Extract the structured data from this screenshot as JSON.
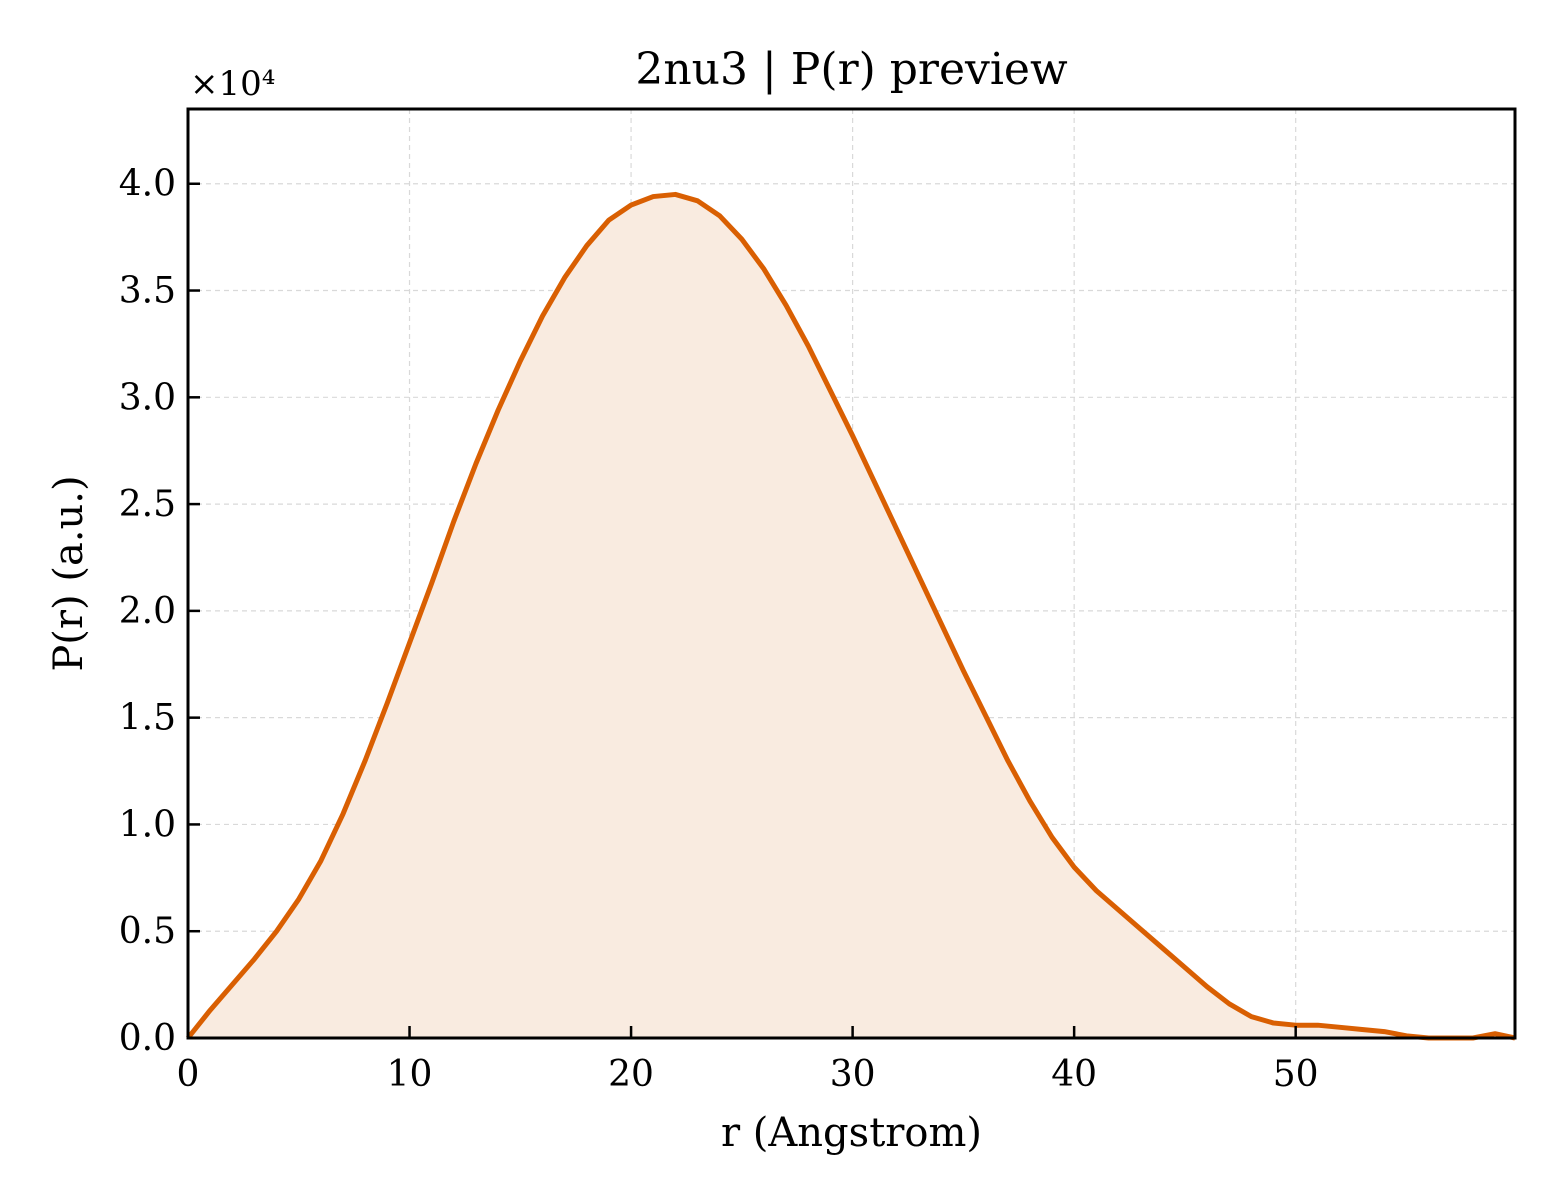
{
  "chart_data": {
    "type": "area",
    "title": "2nu3 | P(r) preview",
    "xlabel": "r (Angstrom)",
    "ylabel": "P(r) (a.u.)",
    "y_offset_label": "×10⁴",
    "xlim": [
      0,
      59.9
    ],
    "ylim": [
      0,
      4.35
    ],
    "xticks": [
      0,
      10,
      20,
      30,
      40,
      50
    ],
    "xtick_labels": [
      "0",
      "10",
      "20",
      "30",
      "40",
      "50"
    ],
    "yticks": [
      0,
      0.5,
      1.0,
      1.5,
      2.0,
      2.5,
      3.0,
      3.5,
      4.0
    ],
    "ytick_labels": [
      "0.0",
      "0.5",
      "1.0",
      "1.5",
      "2.0",
      "2.5",
      "3.0",
      "3.5",
      "4.0"
    ],
    "grid": true,
    "colors": {
      "line": "#d95f02",
      "fill": "#f9ebe0",
      "grid": "#d9d9d9",
      "axis": "#000000"
    },
    "series": [
      {
        "x": [
          0,
          1,
          2,
          3,
          4,
          5,
          6,
          7,
          8,
          9,
          10,
          11,
          12,
          13,
          14,
          15,
          16,
          17,
          18,
          19,
          20,
          21,
          22,
          23,
          24,
          25,
          26,
          27,
          28,
          29,
          30,
          31,
          32,
          33,
          34,
          35,
          36,
          37,
          38,
          39,
          40,
          41,
          42,
          43,
          44,
          45,
          46,
          47,
          48,
          49,
          50,
          51,
          52,
          53,
          54,
          55,
          56,
          57,
          58,
          59,
          59.9
        ],
        "y": [
          0.0,
          0.13,
          0.25,
          0.37,
          0.5,
          0.65,
          0.83,
          1.05,
          1.3,
          1.57,
          1.85,
          2.13,
          2.42,
          2.69,
          2.94,
          3.17,
          3.38,
          3.56,
          3.71,
          3.83,
          3.9,
          3.94,
          3.95,
          3.92,
          3.85,
          3.74,
          3.6,
          3.43,
          3.24,
          3.03,
          2.82,
          2.6,
          2.38,
          2.16,
          1.94,
          1.72,
          1.51,
          1.3,
          1.11,
          0.94,
          0.8,
          0.69,
          0.6,
          0.51,
          0.42,
          0.33,
          0.24,
          0.16,
          0.1,
          0.07,
          0.06,
          0.06,
          0.05,
          0.04,
          0.03,
          0.01,
          -0.01,
          -0.01,
          0.0,
          0.02,
          0.0
        ]
      }
    ]
  }
}
